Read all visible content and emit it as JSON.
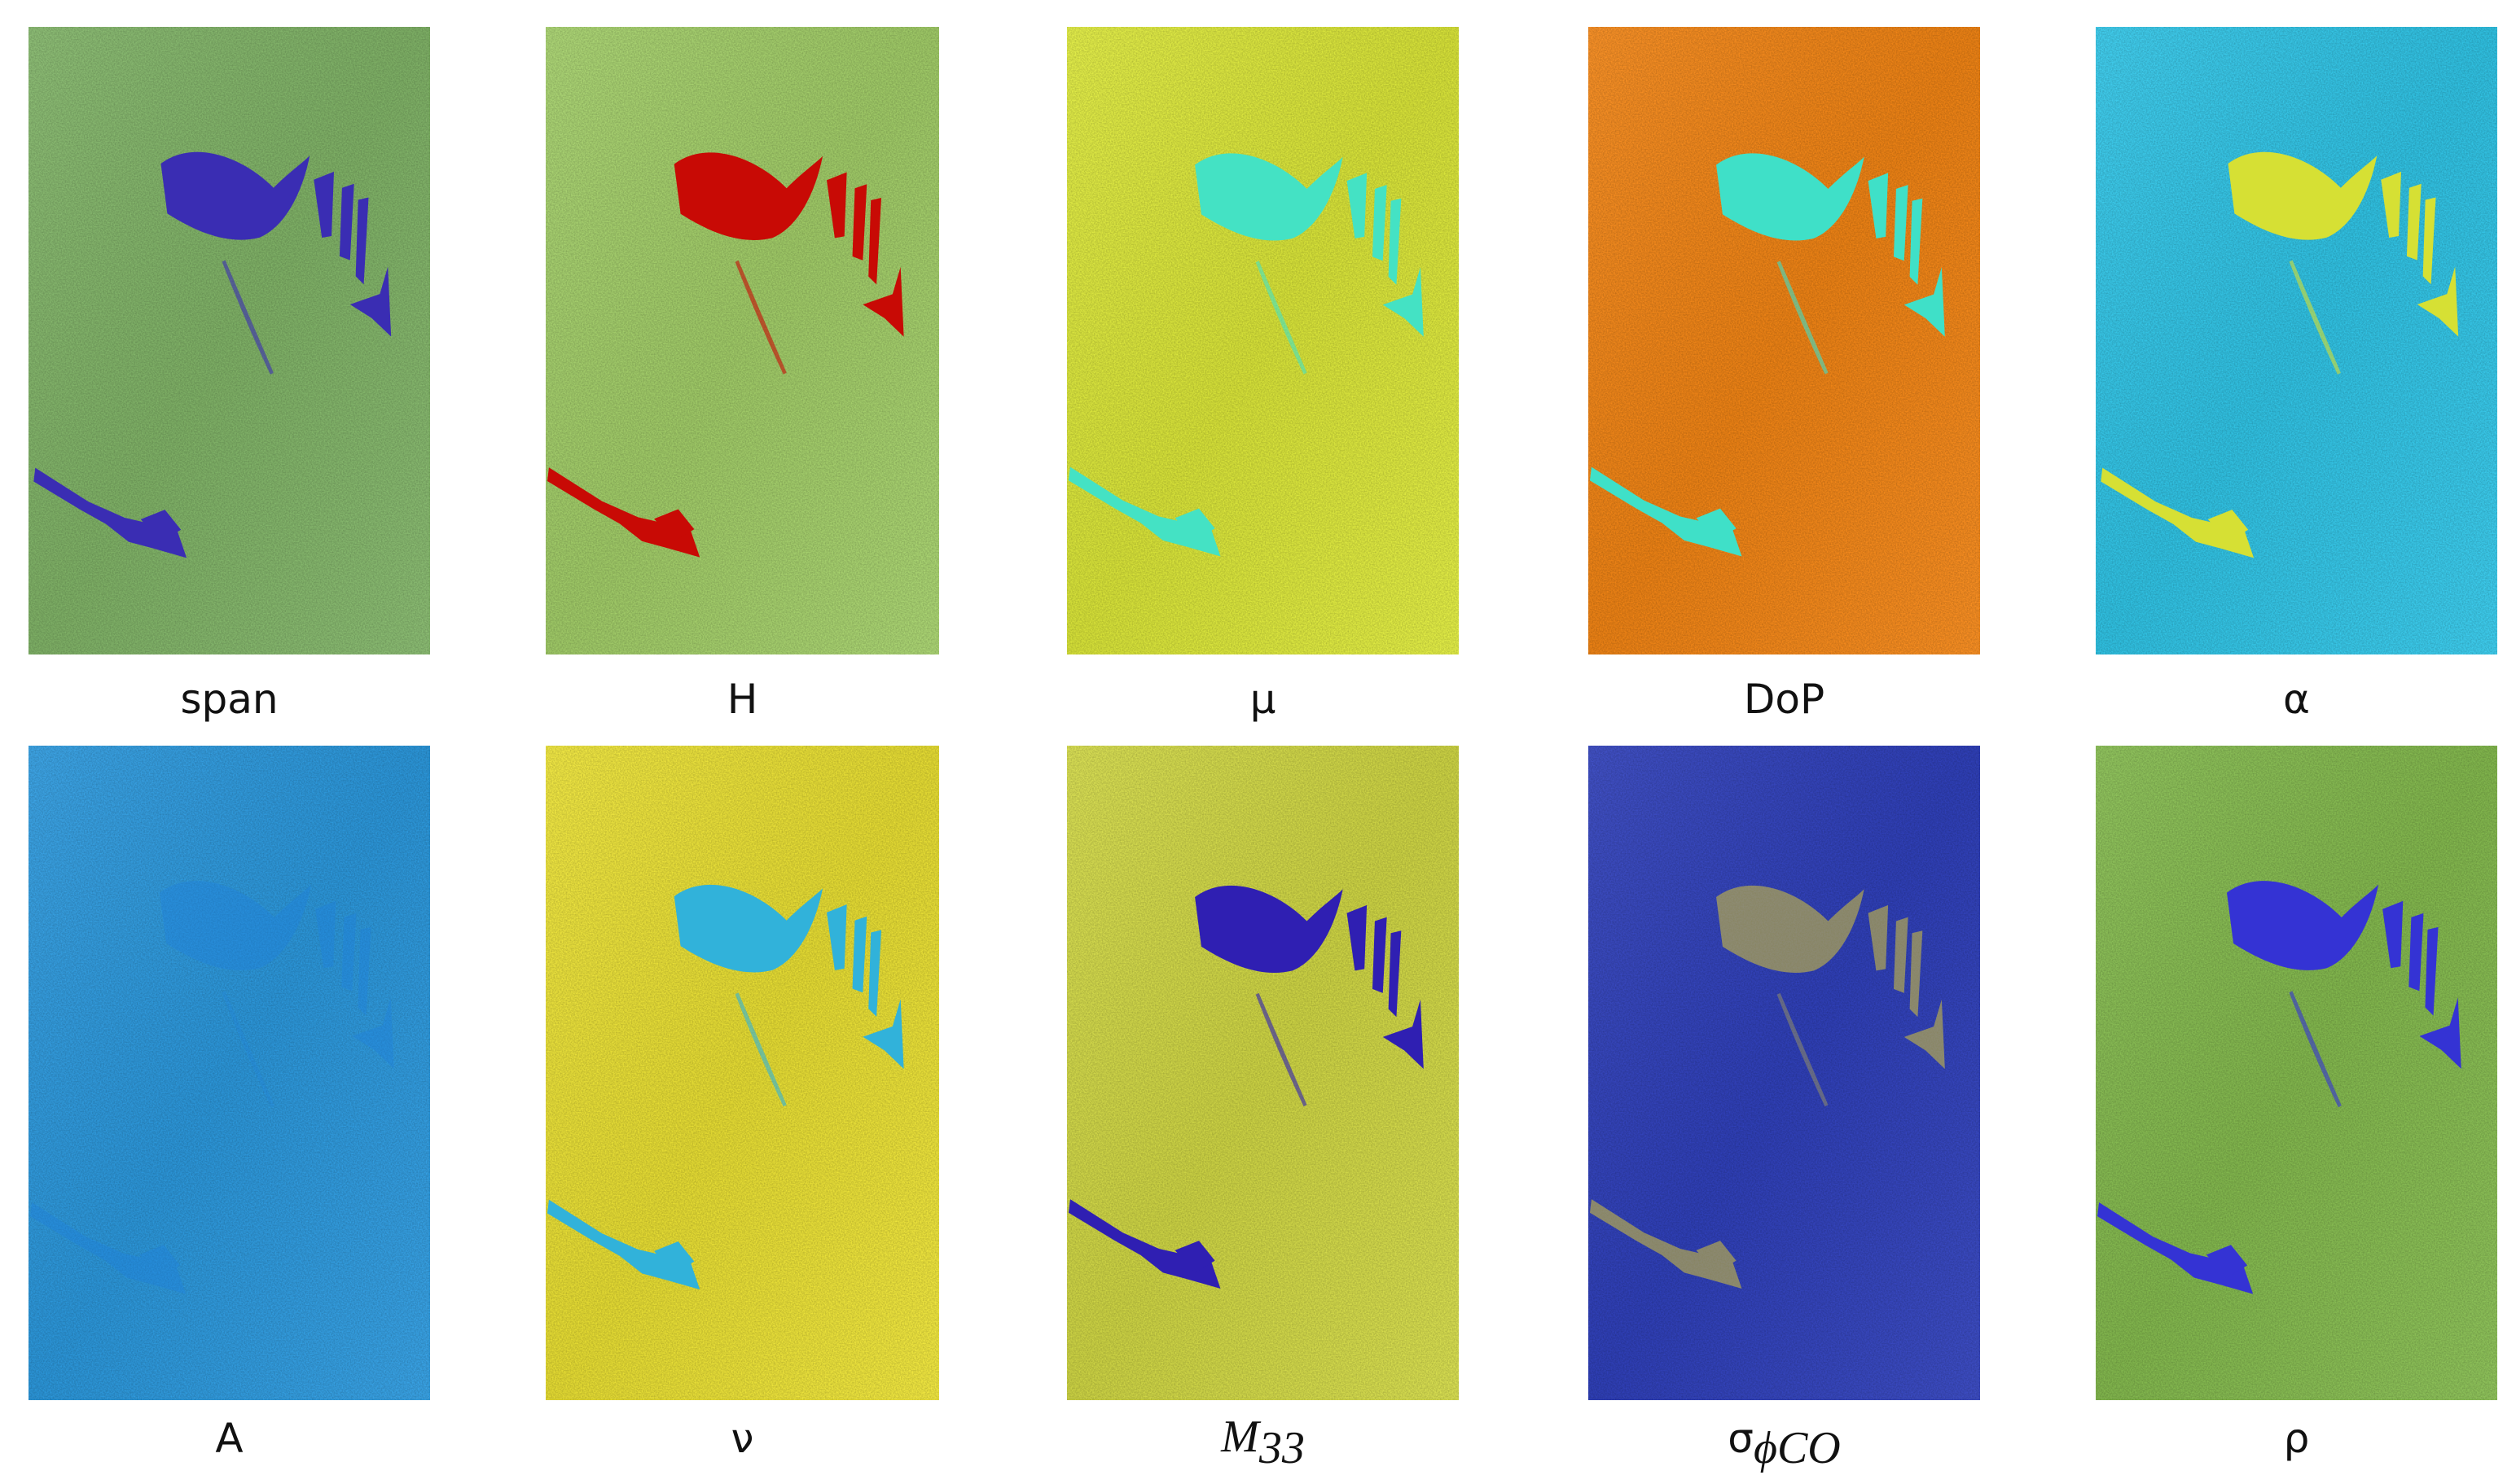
{
  "panels": [
    {
      "label": "span"
    },
    {
      "label": "H"
    },
    {
      "label": "μ"
    },
    {
      "label": "DoP"
    },
    {
      "label": "α"
    },
    {
      "label": "A"
    },
    {
      "label": "ν"
    },
    {
      "label": "M",
      "sub": "33"
    },
    {
      "label": "σ",
      "sub": "ϕCO"
    },
    {
      "label": "ρ"
    }
  ]
}
